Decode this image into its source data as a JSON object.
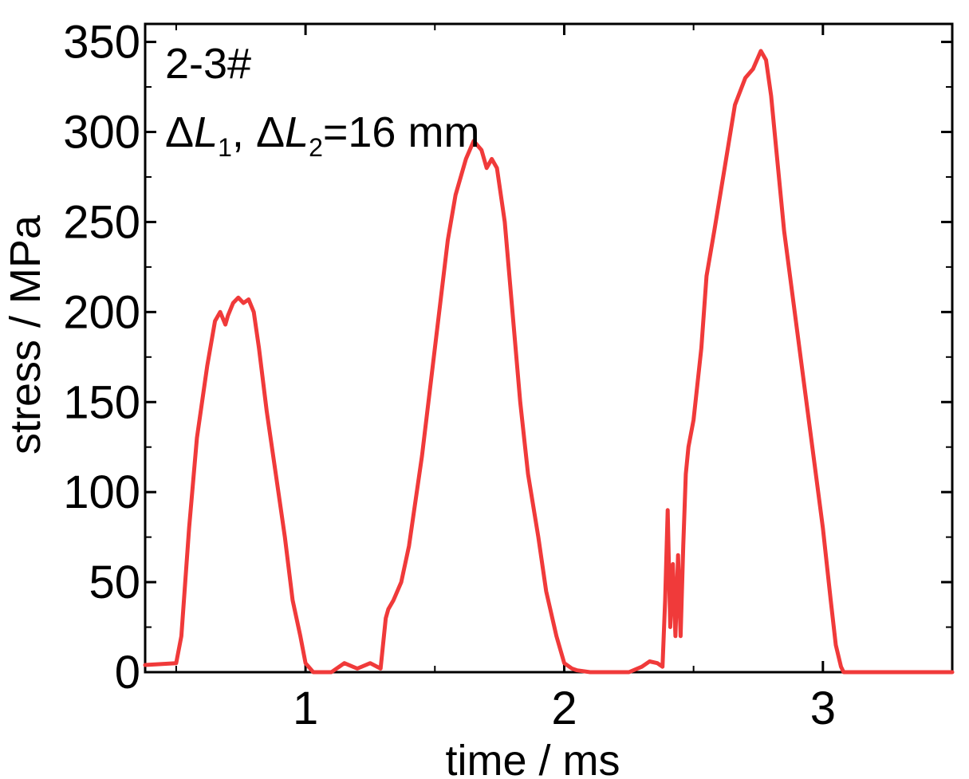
{
  "chart_data": {
    "type": "line",
    "xlabel": "time / ms",
    "ylabel": "stress / MPa",
    "xlim": [
      0.38,
      3.5
    ],
    "ylim": [
      0,
      360
    ],
    "xticks": [
      1,
      2,
      3
    ],
    "xtick_labels": [
      "1",
      "2",
      "3"
    ],
    "yticks": [
      0,
      50,
      100,
      150,
      200,
      250,
      300,
      350
    ],
    "ytick_labels": [
      "0",
      "50",
      "100",
      "150",
      "200",
      "250",
      "300",
      "350"
    ],
    "grid": false,
    "annotations": {
      "line1": "2-3#",
      "line2_delta_a": "Δ",
      "line2_L_a": "L",
      "line2_sub_a": "1",
      "line2_sep": ", ",
      "line2_delta_b": "Δ",
      "line2_L_b": "L",
      "line2_sub_b": "2",
      "line2_rest": "=16 mm"
    },
    "series": [
      {
        "color": "#f03a3a",
        "x": [
          0.38,
          0.5,
          0.52,
          0.55,
          0.58,
          0.62,
          0.65,
          0.67,
          0.69,
          0.7,
          0.72,
          0.74,
          0.76,
          0.78,
          0.8,
          0.82,
          0.85,
          0.88,
          0.92,
          0.95,
          0.98,
          1.0,
          1.03,
          1.05,
          1.1,
          1.15,
          1.2,
          1.25,
          1.29,
          1.31,
          1.32,
          1.34,
          1.37,
          1.4,
          1.45,
          1.5,
          1.55,
          1.58,
          1.62,
          1.65,
          1.68,
          1.7,
          1.72,
          1.74,
          1.77,
          1.8,
          1.83,
          1.86,
          1.9,
          1.93,
          1.97,
          2.0,
          2.03,
          2.05,
          2.1,
          2.15,
          2.2,
          2.25,
          2.3,
          2.33,
          2.36,
          2.38,
          2.39,
          2.4,
          2.41,
          2.42,
          2.43,
          2.44,
          2.45,
          2.46,
          2.47,
          2.48,
          2.5,
          2.53,
          2.55,
          2.58,
          2.62,
          2.66,
          2.7,
          2.73,
          2.76,
          2.78,
          2.8,
          2.82,
          2.85,
          2.9,
          2.95,
          3.0,
          3.03,
          3.05,
          3.07,
          3.08,
          3.1,
          3.2,
          3.3,
          3.4,
          3.5
        ],
        "y": [
          4,
          5,
          20,
          80,
          130,
          170,
          195,
          200,
          193,
          198,
          205,
          208,
          205,
          207,
          200,
          180,
          145,
          115,
          75,
          40,
          20,
          5,
          0,
          0,
          0,
          5,
          2,
          5,
          2,
          30,
          35,
          40,
          50,
          70,
          120,
          180,
          240,
          265,
          285,
          295,
          290,
          280,
          285,
          280,
          250,
          200,
          150,
          110,
          75,
          45,
          20,
          5,
          2,
          1,
          0,
          0,
          0,
          0,
          3,
          6,
          5,
          3,
          40,
          90,
          25,
          60,
          20,
          65,
          20,
          70,
          110,
          125,
          140,
          180,
          220,
          245,
          280,
          315,
          330,
          335,
          345,
          340,
          320,
          290,
          245,
          190,
          135,
          80,
          40,
          15,
          3,
          0,
          0,
          0,
          0,
          0,
          0
        ]
      }
    ]
  }
}
